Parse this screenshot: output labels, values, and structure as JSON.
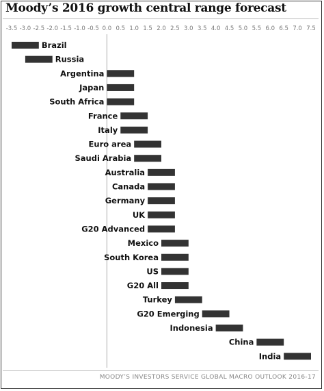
{
  "title": "Moody’s 2016 growth central range forecast",
  "source": "MOODY’S INVESTORS SERVICE GLOBAL MACRO OUTLOOK 2016-17",
  "colors": {
    "bar": "#333333",
    "zero_line": "#aaaaaa",
    "grid": "#dddddd"
  },
  "chart_data": {
    "type": "bar",
    "orientation": "horizontal",
    "title": "Moody’s 2016 growth central range forecast",
    "xlim": [
      -3.5,
      7.5
    ],
    "x_ticks": [
      "-3.5",
      "-3.0",
      "-2.5",
      "-2.0",
      "-1.5",
      "-1.0",
      "-0.5",
      "0.0",
      "0.5",
      "1.0",
      "1.5",
      "2.0",
      "2.5",
      "3.0",
      "3.5",
      "4.0",
      "4.5",
      "5.0",
      "5.5",
      "6.0",
      "6.5",
      "7.0",
      "7.5"
    ],
    "grid": false,
    "categories": [
      "Brazil",
      "Russia",
      "Argentina",
      "Japan",
      "South Africa",
      "France",
      "Italy",
      "Euro area",
      "Saudi Arabia",
      "Australia",
      "Canada",
      "Germany",
      "UK",
      "G20 Advanced",
      "Mexico",
      "South Korea",
      "US",
      "G20 All",
      "Turkey",
      "G20 Emerging",
      "Indonesia",
      "China",
      "India"
    ],
    "ranges": [
      [
        -3.5,
        -2.5
      ],
      [
        -3.0,
        -2.0
      ],
      [
        0.0,
        1.0
      ],
      [
        0.0,
        1.0
      ],
      [
        0.0,
        1.0
      ],
      [
        0.5,
        1.5
      ],
      [
        0.5,
        1.5
      ],
      [
        1.0,
        2.0
      ],
      [
        1.0,
        2.0
      ],
      [
        1.5,
        2.5
      ],
      [
        1.5,
        2.5
      ],
      [
        1.5,
        2.5
      ],
      [
        1.5,
        2.5
      ],
      [
        1.5,
        2.5
      ],
      [
        2.0,
        3.0
      ],
      [
        2.0,
        3.0
      ],
      [
        2.0,
        3.0
      ],
      [
        2.0,
        3.0
      ],
      [
        2.5,
        3.5
      ],
      [
        3.5,
        4.5
      ],
      [
        4.0,
        5.0
      ],
      [
        5.5,
        6.5
      ],
      [
        6.5,
        7.5
      ]
    ]
  }
}
